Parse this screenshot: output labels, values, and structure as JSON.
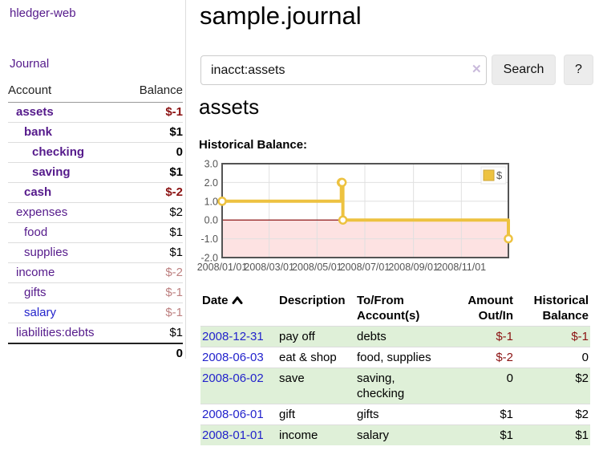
{
  "app": {
    "title": "hledger-web",
    "nav_journal_label": "Journal"
  },
  "colors": {
    "accent_purple": "#551a8b",
    "link_blue": "#2323cc",
    "negative_strong": "#8b1212",
    "negative_soft": "#bd8080",
    "table_stripe_green": "#dff0d8",
    "button_bg": "#ececec",
    "chart_series_gold": "#edc240",
    "chart_negative_fill": "#fde2e2",
    "chart_zero_line": "#800000",
    "chart_border": "#545454"
  },
  "sidebar": {
    "header": {
      "account": "Account",
      "balance": "Balance"
    },
    "accounts": [
      {
        "name": "assets",
        "balance": "$-1",
        "level": 1,
        "bold": true,
        "balance_class": "neg-strong"
      },
      {
        "name": "bank",
        "balance": "$1",
        "level": 2,
        "bold": true,
        "balance_class": ""
      },
      {
        "name": "checking",
        "balance": "0",
        "level": 3,
        "bold": true,
        "balance_class": ""
      },
      {
        "name": "saving",
        "balance": "$1",
        "level": 3,
        "bold": true,
        "balance_class": ""
      },
      {
        "name": "cash",
        "balance": "$-2",
        "level": 2,
        "bold": true,
        "balance_class": "neg-strong"
      },
      {
        "name": "expenses",
        "balance": "$2",
        "level": 1,
        "bold": false,
        "balance_class": ""
      },
      {
        "name": "food",
        "balance": "$1",
        "level": 2,
        "bold": false,
        "balance_class": ""
      },
      {
        "name": "supplies",
        "balance": "$1",
        "level": 2,
        "bold": false,
        "balance_class": ""
      },
      {
        "name": "income",
        "balance": "$-2",
        "level": 1,
        "bold": false,
        "balance_class": "neg-soft"
      },
      {
        "name": "gifts",
        "balance": "$-1",
        "level": 2,
        "bold": false,
        "balance_class": "neg-soft"
      },
      {
        "name": "salary",
        "balance": "$-1",
        "level": 2,
        "bold": false,
        "balance_class": "neg-soft",
        "link_color": "blue"
      },
      {
        "name": "liabilities:debts",
        "balance": "$1",
        "level": 1,
        "bold": false,
        "balance_class": ""
      }
    ],
    "total": "0"
  },
  "main": {
    "title": "sample.journal",
    "search": {
      "value": "inacct:assets",
      "clear_icon": "✕",
      "button_label": "Search",
      "help_label": "?"
    },
    "account_heading": "assets",
    "chart_label": "Historical Balance:"
  },
  "chart_data": {
    "type": "line",
    "step": true,
    "title": "Historical Balance",
    "xrange": [
      "2008-01-01",
      "2008-12-31"
    ],
    "ylim": [
      -2,
      3
    ],
    "yticks": [
      3.0,
      2.0,
      1.0,
      0.0,
      -1.0,
      -2.0
    ],
    "xticks": [
      {
        "date": "2008-01-01",
        "label": "2008/01/01"
      },
      {
        "date": "2008-03-01",
        "label": "2008/03/01"
      },
      {
        "date": "2008-05-01",
        "label": "2008/05/01"
      },
      {
        "date": "2008-07-01",
        "label": "2008/07/01"
      },
      {
        "date": "2008-09-01",
        "label": "2008/09/01"
      },
      {
        "date": "2008-11-01",
        "label": "2008/11/01"
      }
    ],
    "series": [
      {
        "name": "$",
        "points": [
          {
            "x": "2008-01-01",
            "y": 1
          },
          {
            "x": "2008-06-01",
            "y": 2
          },
          {
            "x": "2008-06-02",
            "y": 2
          },
          {
            "x": "2008-06-03",
            "y": 0
          },
          {
            "x": "2008-12-31",
            "y": -1
          }
        ]
      }
    ],
    "legend": [
      {
        "label": "$"
      }
    ],
    "legend_position": "top-right",
    "grid": true,
    "negative_region": {
      "from": 0,
      "to": -2
    }
  },
  "register": {
    "headers": [
      {
        "label": "Date",
        "align": "left",
        "sorted": true
      },
      {
        "label": "Description",
        "align": "left",
        "sorted": false
      },
      {
        "label": "To/From Account(s)",
        "align": "left",
        "sorted": false
      },
      {
        "label": "Amount Out/In",
        "align": "right",
        "sorted": false
      },
      {
        "label": "Historical Balance",
        "align": "right",
        "sorted": false
      }
    ],
    "rows": [
      {
        "date": "2008-12-31",
        "description": "pay off",
        "accounts": "debts",
        "amount": "$-1",
        "amount_class": "neg",
        "balance": "$-1",
        "balance_class": "neg"
      },
      {
        "date": "2008-06-03",
        "description": "eat & shop",
        "accounts": "food, supplies",
        "amount": "$-2",
        "amount_class": "neg",
        "balance": "0",
        "balance_class": ""
      },
      {
        "date": "2008-06-02",
        "description": "save",
        "accounts": "saving,\nchecking",
        "amount": "0",
        "amount_class": "",
        "balance": "$2",
        "balance_class": ""
      },
      {
        "date": "2008-06-01",
        "description": "gift",
        "accounts": "gifts",
        "amount": "$1",
        "amount_class": "",
        "balance": "$2",
        "balance_class": ""
      },
      {
        "date": "2008-01-01",
        "description": "income",
        "accounts": "salary",
        "amount": "$1",
        "amount_class": "",
        "balance": "$1",
        "balance_class": ""
      }
    ]
  }
}
